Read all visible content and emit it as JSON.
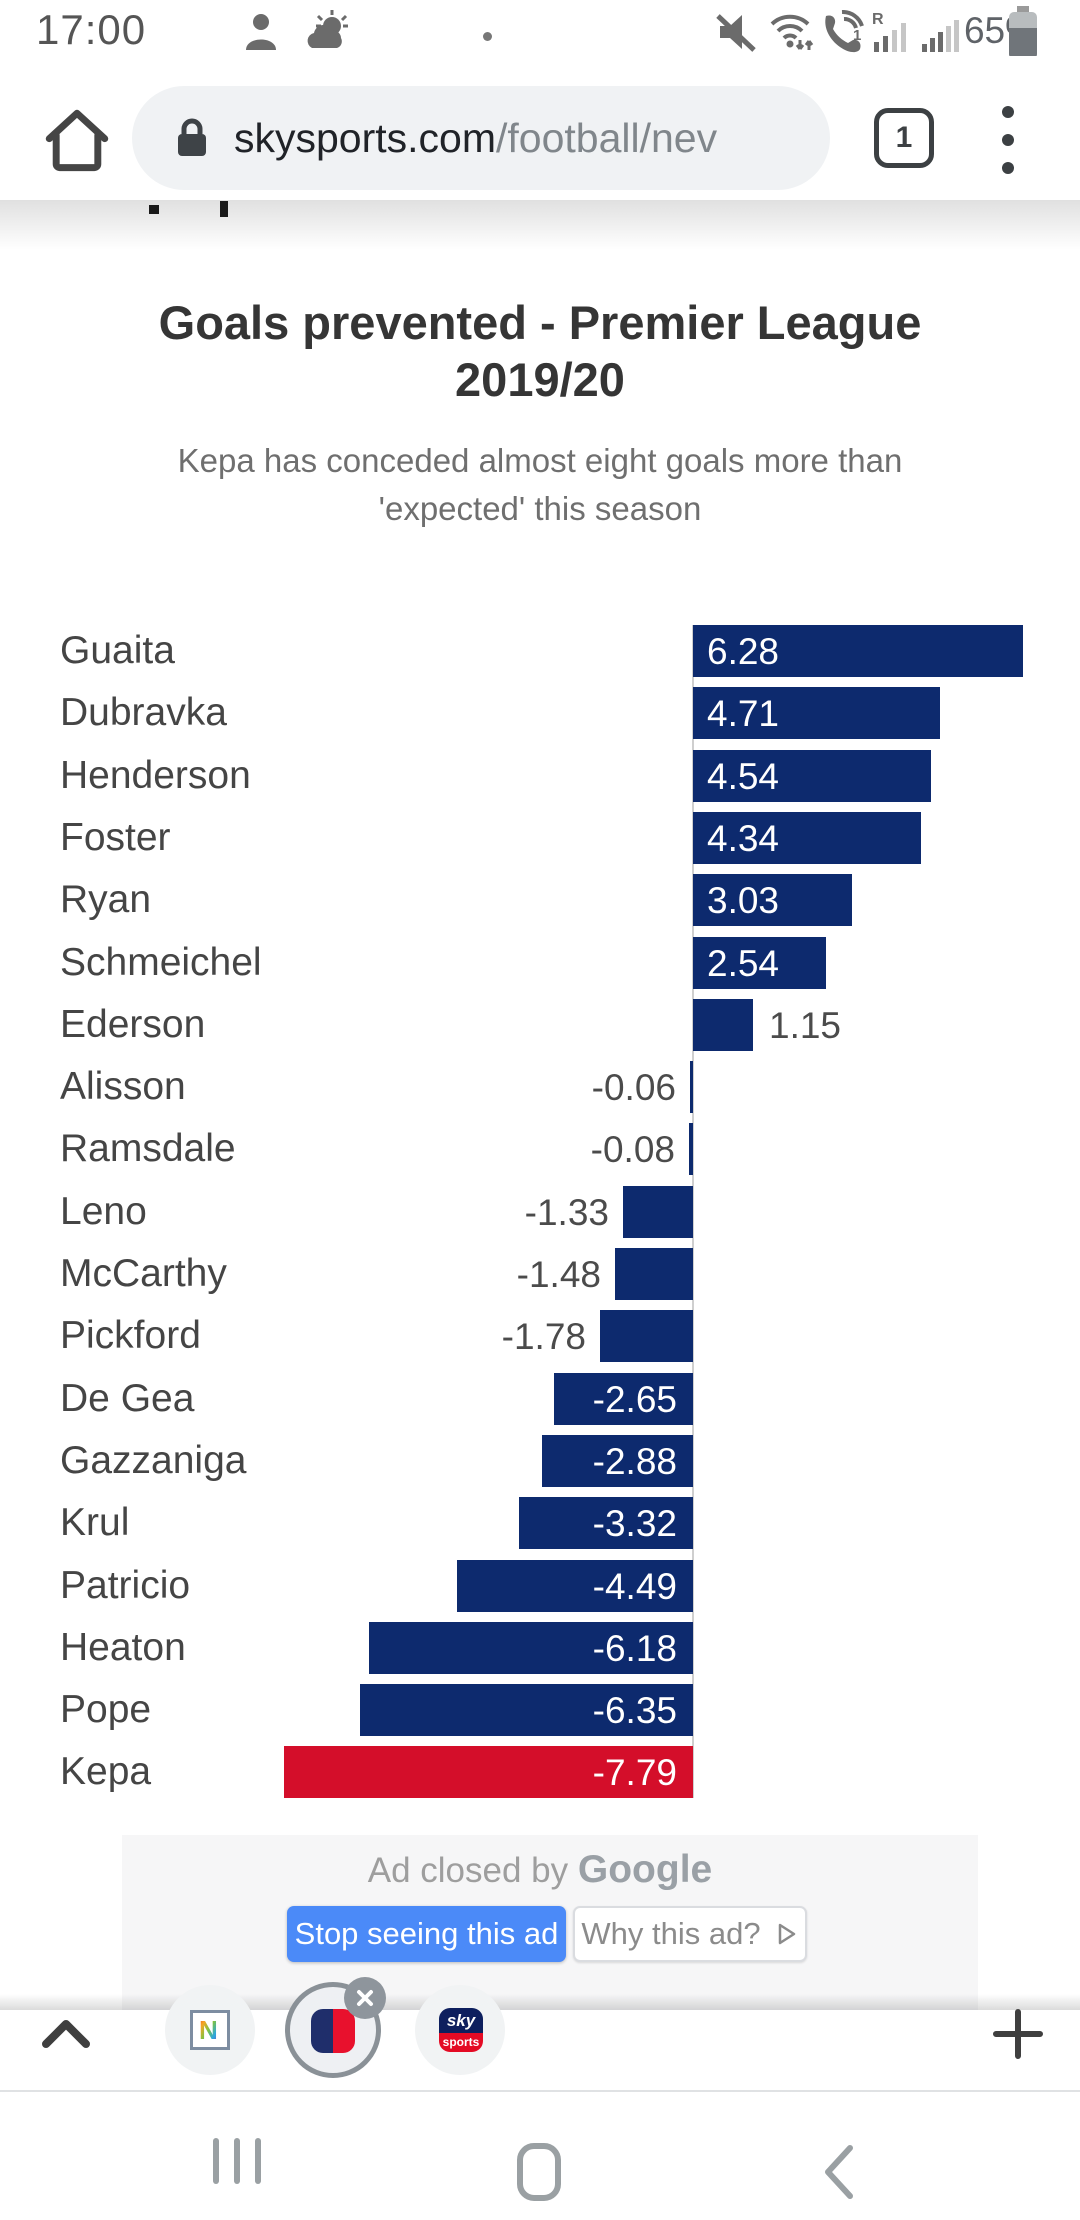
{
  "status_bar": {
    "time": "17:00",
    "battery": "65%"
  },
  "browser": {
    "url_domain": "skysports.com",
    "url_path": "/football/nev",
    "tab_count": "1"
  },
  "article": {
    "title_lines": [
      "Goals prevented - Premier League",
      "2019/20"
    ],
    "subtitle_lines": [
      "Kepa has conceded almost eight goals more than",
      "'expected' this season"
    ]
  },
  "chart_data": {
    "type": "bar",
    "orientation": "horizontal",
    "title": "Goals prevented - Premier League 2019/20",
    "subtitle": "Kepa has conceded almost eight goals more than 'expected' this season",
    "categories": [
      "Guaita",
      "Dubravka",
      "Henderson",
      "Foster",
      "Ryan",
      "Schmeichel",
      "Ederson",
      "Alisson",
      "Ramsdale",
      "Leno",
      "McCarthy",
      "Pickford",
      "De Gea",
      "Gazzaniga",
      "Krul",
      "Patricio",
      "Heaton",
      "Pope",
      "Kepa"
    ],
    "values": [
      6.28,
      4.71,
      4.54,
      4.34,
      3.03,
      2.54,
      1.15,
      -0.06,
      -0.08,
      -1.33,
      -1.48,
      -1.78,
      -2.65,
      -2.88,
      -3.32,
      -4.49,
      -6.18,
      -6.35,
      -7.79
    ],
    "value_labels": [
      "6.28",
      "4.71",
      "4.54",
      "4.34",
      "3.03",
      "2.54",
      "1.15",
      "-0.06",
      "-0.08",
      "-1.33",
      "-1.48",
      "-1.78",
      "-2.65",
      "-2.88",
      "-3.32",
      "-4.49",
      "-6.18",
      "-6.35",
      "-7.79"
    ],
    "bar_color": "#0d2a6e",
    "highlight_bar_color": "#d40e2a",
    "highlight_category": "Kepa",
    "xlim": [
      -7.79,
      6.28
    ],
    "grid": false,
    "legend": false
  },
  "ad": {
    "closed_prefix": "Ad closed by",
    "brand": "Google",
    "stop_button_label": "Stop seeing this ad",
    "why_button_label": "Why this ad?",
    "accent_color": "#4b8af8"
  },
  "toolbar_icons": {
    "sky_top": "sky",
    "sky_bottom": "sports",
    "n_letter": "N"
  }
}
